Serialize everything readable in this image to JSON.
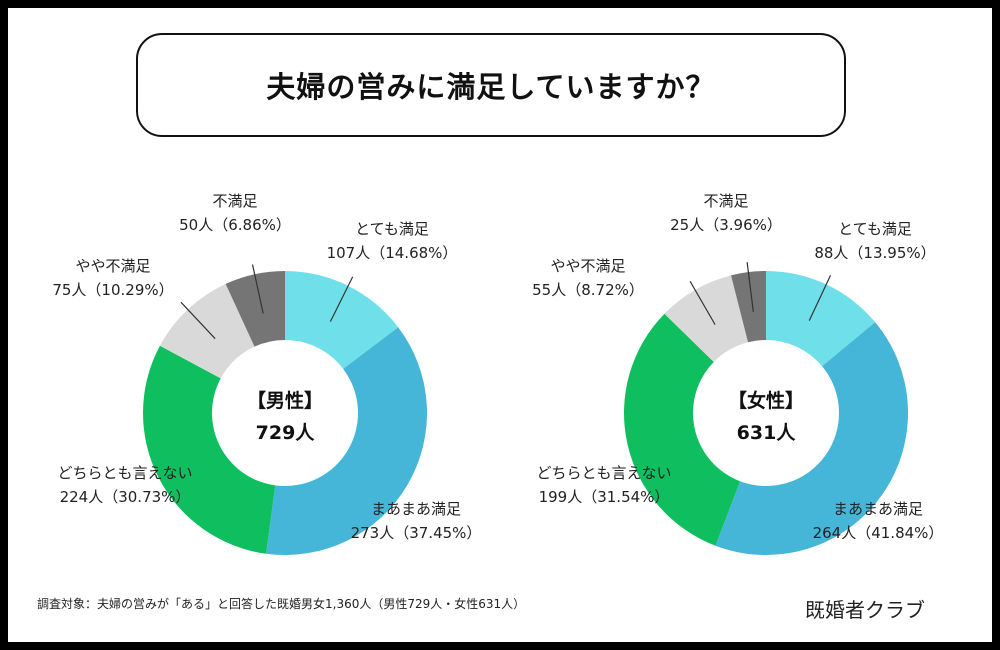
{
  "title": "夫婦の営みに満足していますか？",
  "footnote": "調査対象：夫婦の営みが「ある」と回答した既婚男女1,360人（男性729人・女性631人）",
  "brand": "既婚者クラブ",
  "chart_data": [
    {
      "type": "pie",
      "center_label": "【男性】",
      "center_count": "729人",
      "slices": [
        {
          "name": "とても満足",
          "count": 107,
          "label": "107人（14.68%）",
          "percent": 14.68,
          "color": "#6fe0e9"
        },
        {
          "name": "まあまあ満足",
          "count": 273,
          "label": "273人（37.45%）",
          "percent": 37.45,
          "color": "#45b6d8"
        },
        {
          "name": "どちらとも言えない",
          "count": 224,
          "label": "224人（30.73%）",
          "percent": 30.73,
          "color": "#0fbf5f"
        },
        {
          "name": "やや不満足",
          "count": 75,
          "label": "75人（10.29%）",
          "percent": 10.29,
          "color": "#d9d9d9"
        },
        {
          "name": "不満足",
          "count": 50,
          "label": "50人（6.86%）",
          "percent": 6.86,
          "color": "#757575"
        }
      ]
    },
    {
      "type": "pie",
      "center_label": "【女性】",
      "center_count": "631人",
      "slices": [
        {
          "name": "とても満足",
          "count": 88,
          "label": "88人（13.95%）",
          "percent": 13.95,
          "color": "#6fe0e9"
        },
        {
          "name": "まあまあ満足",
          "count": 264,
          "label": "264人（41.84%）",
          "percent": 41.84,
          "color": "#45b6d8"
        },
        {
          "name": "どちらとも言えない",
          "count": 199,
          "label": "199人（31.54%）",
          "percent": 31.54,
          "color": "#0fbf5f"
        },
        {
          "name": "やや不満足",
          "count": 55,
          "label": "55人（8.72%）",
          "percent": 8.72,
          "color": "#d9d9d9"
        },
        {
          "name": "不満足",
          "count": 25,
          "label": "25人（3.96%）",
          "percent": 3.96,
          "color": "#757575"
        }
      ]
    }
  ]
}
